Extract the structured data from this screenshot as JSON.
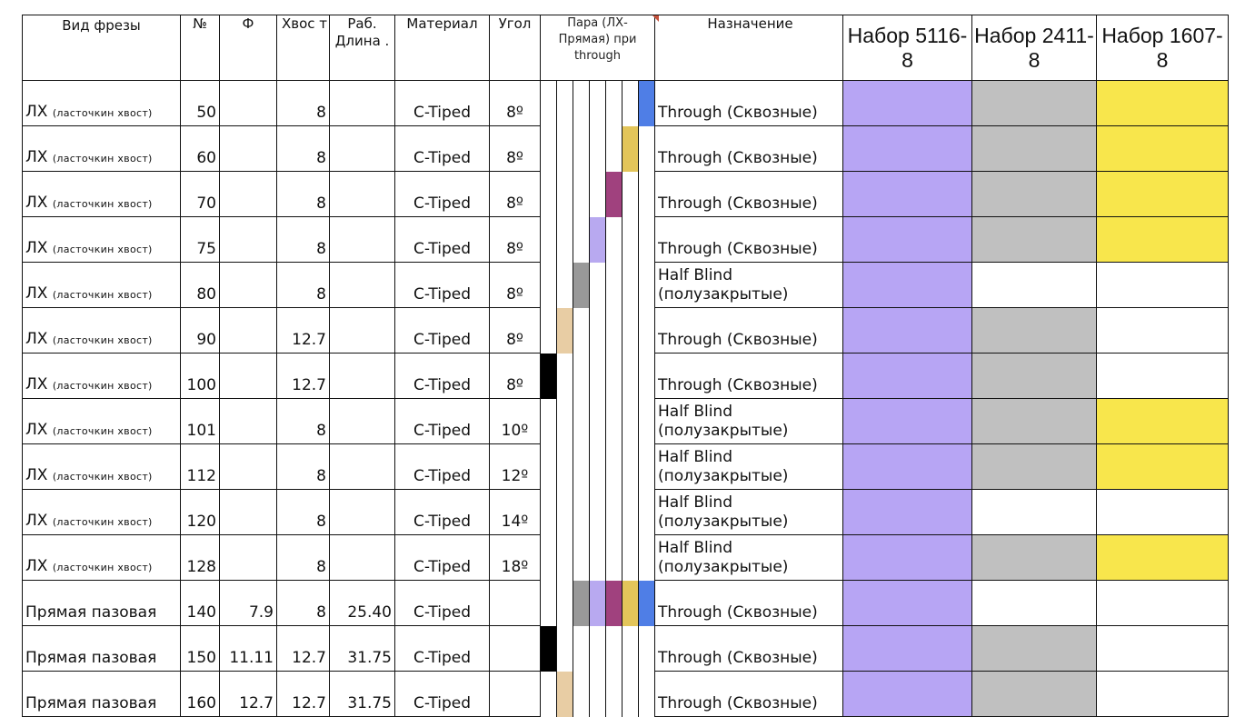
{
  "headers": {
    "name": "Вид фрезы",
    "num": "№",
    "fi": "Ф",
    "tail": "Хвос т",
    "length": "Раб. Длина .",
    "material": "Материал",
    "angle": "Угол",
    "pair": "Пара (ЛХ-Прямая) при through",
    "purpose": "Назначение",
    "set1": "Набор 5116-8",
    "set2": "Набор 2411-8",
    "set3": "Набор 1607-8"
  },
  "colors": {
    "set1": "#b7a5f4",
    "set2": "#c0c0c0",
    "set3": "#f8e64c",
    "pair_palette": [
      "#000000",
      "#e8cda4",
      "#999999",
      "#b8a9f0",
      "#a0417e",
      "#e3c55a",
      "#4f7ee6"
    ]
  },
  "rows": [
    {
      "name": "ЛХ",
      "name_sub": "(ласточкин хвост)",
      "num": "50",
      "fi": "",
      "tail": "8",
      "length": "",
      "material": "C-Tiped",
      "angle": "8º",
      "purpose": "Through (Сквозные)",
      "pair": [
        "",
        "",
        "",
        "",
        "",
        "",
        "blue"
      ],
      "set1": true,
      "set2": true,
      "set3": true
    },
    {
      "name": "ЛХ",
      "name_sub": "(ласточкин хвост)",
      "num": "60",
      "fi": "",
      "tail": "8",
      "length": "",
      "material": "C-Tiped",
      "angle": "8º",
      "purpose": "Through (Сквозные)",
      "pair": [
        "",
        "",
        "",
        "",
        "",
        "gold",
        ""
      ],
      "set1": true,
      "set2": true,
      "set3": true
    },
    {
      "name": "ЛХ",
      "name_sub": "(ласточкин хвост)",
      "num": "70",
      "fi": "",
      "tail": "8",
      "length": "",
      "material": "C-Tiped",
      "angle": "8º",
      "purpose": "Through (Сквозные)",
      "pair": [
        "",
        "",
        "",
        "",
        "magenta",
        "",
        ""
      ],
      "set1": true,
      "set2": true,
      "set3": true
    },
    {
      "name": "ЛХ",
      "name_sub": "(ласточкин хвост)",
      "num": "75",
      "fi": "",
      "tail": "8",
      "length": "",
      "material": "C-Tiped",
      "angle": "8º",
      "purpose": "Through (Сквозные)",
      "pair": [
        "",
        "",
        "",
        "lavender",
        "",
        "",
        ""
      ],
      "set1": true,
      "set2": true,
      "set3": true
    },
    {
      "name": "ЛХ",
      "name_sub": "(ласточкин хвост)",
      "num": "80",
      "fi": "",
      "tail": "8",
      "length": "",
      "material": "C-Tiped",
      "angle": "8º",
      "purpose": "Half Blind (полузакрытые)",
      "pair": [
        "",
        "",
        "grey",
        "",
        "",
        "",
        ""
      ],
      "set1": true,
      "set2": false,
      "set3": false
    },
    {
      "name": "ЛХ",
      "name_sub": "(ласточкин хвост)",
      "num": "90",
      "fi": "",
      "tail": "12.7",
      "length": "",
      "material": "C-Tiped",
      "angle": "8º",
      "purpose": "Through (Сквозные)",
      "pair": [
        "",
        "tan",
        "",
        "",
        "",
        "",
        ""
      ],
      "set1": true,
      "set2": true,
      "set3": false
    },
    {
      "name": "ЛХ",
      "name_sub": "(ласточкин хвост)",
      "num": "100",
      "fi": "",
      "tail": "12.7",
      "length": "",
      "material": "C-Tiped",
      "angle": "8º",
      "purpose": "Through (Сквозные)",
      "pair": [
        "black",
        "",
        "",
        "",
        "",
        "",
        ""
      ],
      "set1": true,
      "set2": true,
      "set3": false
    },
    {
      "name": "ЛХ",
      "name_sub": "(ласточкин хвост)",
      "num": "101",
      "fi": "",
      "tail": "8",
      "length": "",
      "material": "C-Tiped",
      "angle": "10º",
      "purpose": "Half Blind (полузакрытые)",
      "pair": [
        "",
        "",
        "",
        "",
        "",
        "",
        ""
      ],
      "set1": true,
      "set2": true,
      "set3": true
    },
    {
      "name": "ЛХ",
      "name_sub": "(ласточкин хвост)",
      "num": "112",
      "fi": "",
      "tail": "8",
      "length": "",
      "material": "C-Tiped",
      "angle": "12º",
      "purpose": "Half Blind (полузакрытые)",
      "pair": [
        "",
        "",
        "",
        "",
        "",
        "",
        ""
      ],
      "set1": true,
      "set2": true,
      "set3": true
    },
    {
      "name": "ЛХ",
      "name_sub": "(ласточкин хвост)",
      "num": "120",
      "fi": "",
      "tail": "8",
      "length": "",
      "material": "C-Tiped",
      "angle": "14º",
      "purpose": "Half Blind (полузакрытые)",
      "pair": [
        "",
        "",
        "",
        "",
        "",
        "",
        ""
      ],
      "set1": true,
      "set2": false,
      "set3": false
    },
    {
      "name": "ЛХ",
      "name_sub": "(ласточкин хвост)",
      "num": "128",
      "fi": "",
      "tail": "8",
      "length": "",
      "material": "C-Tiped",
      "angle": "18º",
      "purpose": "Half Blind (полузакрытые)",
      "pair": [
        "",
        "",
        "",
        "",
        "",
        "",
        ""
      ],
      "set1": true,
      "set2": true,
      "set3": true
    },
    {
      "name": "Прямая пазовая",
      "name_sub": "",
      "num": "140",
      "fi": "7.9",
      "tail": "8",
      "length": "25.40",
      "material": "C-Tiped",
      "angle": "",
      "purpose": "Through (Сквозные)",
      "pair": [
        "",
        "",
        "grey",
        "lavender",
        "magenta",
        "gold",
        "blue"
      ],
      "set1": true,
      "set2": false,
      "set3": false
    },
    {
      "name": "Прямая пазовая",
      "name_sub": "",
      "num": "150",
      "fi": "11.11",
      "tail": "12.7",
      "length": "31.75",
      "material": "C-Tiped",
      "angle": "",
      "purpose": "Through (Сквозные)",
      "pair": [
        "black",
        "",
        "",
        "",
        "",
        "",
        ""
      ],
      "set1": true,
      "set2": true,
      "set3": false
    },
    {
      "name": "Прямая пазовая",
      "name_sub": "",
      "num": "160",
      "fi": "12.7",
      "tail": "12.7",
      "length": "31.75",
      "material": "C-Tiped",
      "angle": "",
      "purpose": "Through (Сквозные)",
      "pair": [
        "",
        "tan",
        "",
        "",
        "",
        "",
        ""
      ],
      "set1": true,
      "set2": true,
      "set3": false
    }
  ]
}
